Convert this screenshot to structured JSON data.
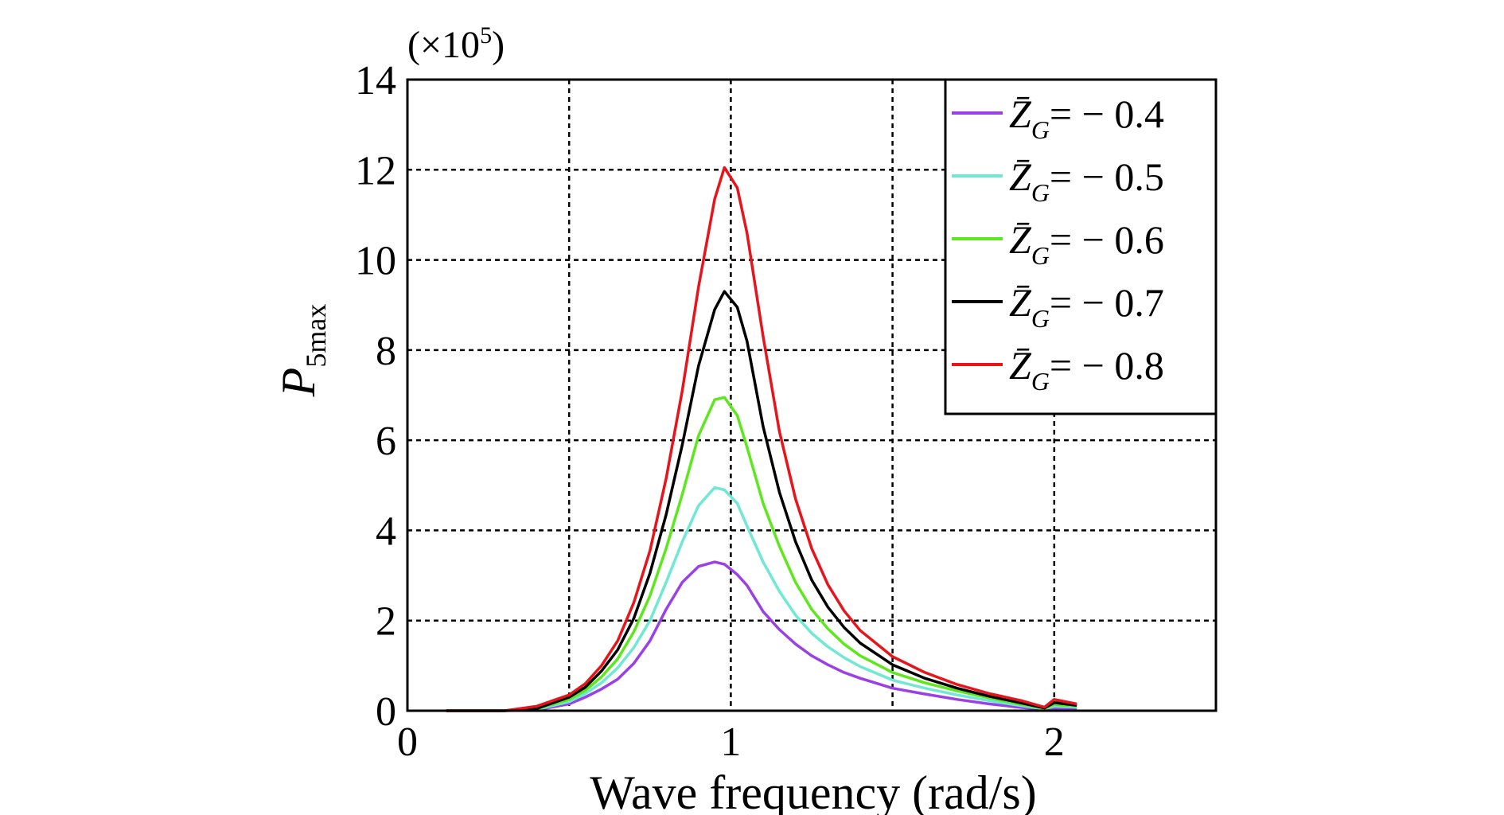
{
  "chart_data": {
    "type": "line",
    "xlabel": "Wave frequency (rad/s)",
    "ylabel_main": "P",
    "ylabel_sub": "5max",
    "y_multiplier_prefix": "(×10",
    "y_multiplier_exp": "5",
    "y_multiplier_suffix": ")",
    "xlim": [
      0,
      2.5
    ],
    "ylim": [
      0,
      14
    ],
    "xticks": [
      0,
      1,
      2
    ],
    "yticks": [
      0,
      2,
      4,
      6,
      8,
      10,
      12,
      14
    ],
    "grid": true,
    "grid_x": [
      0.5,
      1.0,
      1.5,
      2.0
    ],
    "legend_position": "top-right",
    "series": [
      {
        "name": "Z̄G= − 0.4",
        "label_var": "Z̄",
        "label_sub": "G",
        "label_rest": "= − 0.4",
        "color": "#9b3fe6",
        "x": [
          0.12,
          0.3,
          0.4,
          0.5,
          0.55,
          0.6,
          0.65,
          0.7,
          0.75,
          0.8,
          0.85,
          0.9,
          0.95,
          0.98,
          1.02,
          1.05,
          1.1,
          1.15,
          1.2,
          1.25,
          1.3,
          1.35,
          1.4,
          1.5,
          1.6,
          1.7,
          1.8,
          1.9,
          1.97,
          2.0,
          2.07
        ],
        "values": [
          0.0,
          0.0,
          0.02,
          0.15,
          0.3,
          0.48,
          0.7,
          1.05,
          1.55,
          2.25,
          2.85,
          3.2,
          3.3,
          3.25,
          3.02,
          2.78,
          2.2,
          1.8,
          1.48,
          1.22,
          1.02,
          0.85,
          0.72,
          0.5,
          0.37,
          0.25,
          0.15,
          0.07,
          0.03,
          0.06,
          0.05
        ]
      },
      {
        "name": "Z̄G= − 0.5",
        "label_var": "Z̄",
        "label_sub": "G",
        "label_rest": "= − 0.5",
        "color": "#6fe8d4",
        "x": [
          0.12,
          0.3,
          0.4,
          0.5,
          0.55,
          0.6,
          0.65,
          0.7,
          0.75,
          0.8,
          0.85,
          0.9,
          0.95,
          0.98,
          1.02,
          1.05,
          1.1,
          1.15,
          1.2,
          1.25,
          1.3,
          1.35,
          1.4,
          1.5,
          1.6,
          1.7,
          1.8,
          1.9,
          1.97,
          2.0,
          2.07
        ],
        "values": [
          0.0,
          0.0,
          0.03,
          0.2,
          0.38,
          0.62,
          0.95,
          1.4,
          2.0,
          2.85,
          3.75,
          4.55,
          4.95,
          4.9,
          4.6,
          4.1,
          3.3,
          2.65,
          2.12,
          1.72,
          1.42,
          1.18,
          0.98,
          0.68,
          0.5,
          0.35,
          0.22,
          0.11,
          0.04,
          0.1,
          0.08
        ]
      },
      {
        "name": "Z̄G= − 0.6",
        "label_var": "Z̄",
        "label_sub": "G",
        "label_rest": "= − 0.6",
        "color": "#5de81e",
        "x": [
          0.12,
          0.3,
          0.4,
          0.5,
          0.55,
          0.6,
          0.65,
          0.7,
          0.75,
          0.8,
          0.85,
          0.9,
          0.95,
          0.98,
          1.02,
          1.05,
          1.1,
          1.15,
          1.2,
          1.25,
          1.3,
          1.35,
          1.4,
          1.5,
          1.6,
          1.7,
          1.8,
          1.9,
          1.97,
          2.0,
          2.07
        ],
        "values": [
          0.0,
          0.0,
          0.04,
          0.25,
          0.45,
          0.75,
          1.15,
          1.75,
          2.55,
          3.6,
          4.8,
          6.1,
          6.9,
          6.95,
          6.55,
          5.85,
          4.6,
          3.65,
          2.85,
          2.25,
          1.82,
          1.48,
          1.22,
          0.85,
          0.62,
          0.44,
          0.28,
          0.14,
          0.05,
          0.14,
          0.1
        ]
      },
      {
        "name": "Z̄G= − 0.7",
        "label_var": "Z̄",
        "label_sub": "G",
        "label_rest": "= − 0.7",
        "color": "#000000",
        "x": [
          0.12,
          0.3,
          0.4,
          0.5,
          0.55,
          0.6,
          0.65,
          0.7,
          0.75,
          0.8,
          0.85,
          0.9,
          0.95,
          0.98,
          1.02,
          1.05,
          1.1,
          1.15,
          1.2,
          1.25,
          1.3,
          1.35,
          1.4,
          1.5,
          1.6,
          1.7,
          1.8,
          1.9,
          1.97,
          2.0,
          2.07
        ],
        "values": [
          0.0,
          0.0,
          0.05,
          0.3,
          0.52,
          0.88,
          1.35,
          2.05,
          3.05,
          4.35,
          5.9,
          7.65,
          8.9,
          9.3,
          8.95,
          8.2,
          6.3,
          4.85,
          3.75,
          2.9,
          2.3,
          1.85,
          1.5,
          1.02,
          0.72,
          0.5,
          0.32,
          0.17,
          0.06,
          0.18,
          0.12
        ]
      },
      {
        "name": "Z̄G= − 0.8",
        "label_var": "Z̄",
        "label_sub": "G",
        "label_rest": "= − 0.8",
        "color": "#e8141c",
        "x": [
          0.12,
          0.3,
          0.4,
          0.5,
          0.55,
          0.6,
          0.65,
          0.7,
          0.75,
          0.8,
          0.85,
          0.9,
          0.95,
          0.98,
          1.02,
          1.05,
          1.1,
          1.15,
          1.2,
          1.25,
          1.3,
          1.35,
          1.4,
          1.5,
          1.6,
          1.7,
          1.8,
          1.9,
          1.97,
          2.0,
          2.07
        ],
        "values": [
          0.0,
          0.0,
          0.1,
          0.35,
          0.6,
          1.0,
          1.55,
          2.4,
          3.55,
          5.15,
          7.1,
          9.4,
          11.35,
          12.05,
          11.6,
          10.6,
          8.3,
          6.2,
          4.7,
          3.6,
          2.8,
          2.22,
          1.78,
          1.2,
          0.85,
          0.58,
          0.38,
          0.22,
          0.08,
          0.25,
          0.15
        ]
      }
    ]
  }
}
